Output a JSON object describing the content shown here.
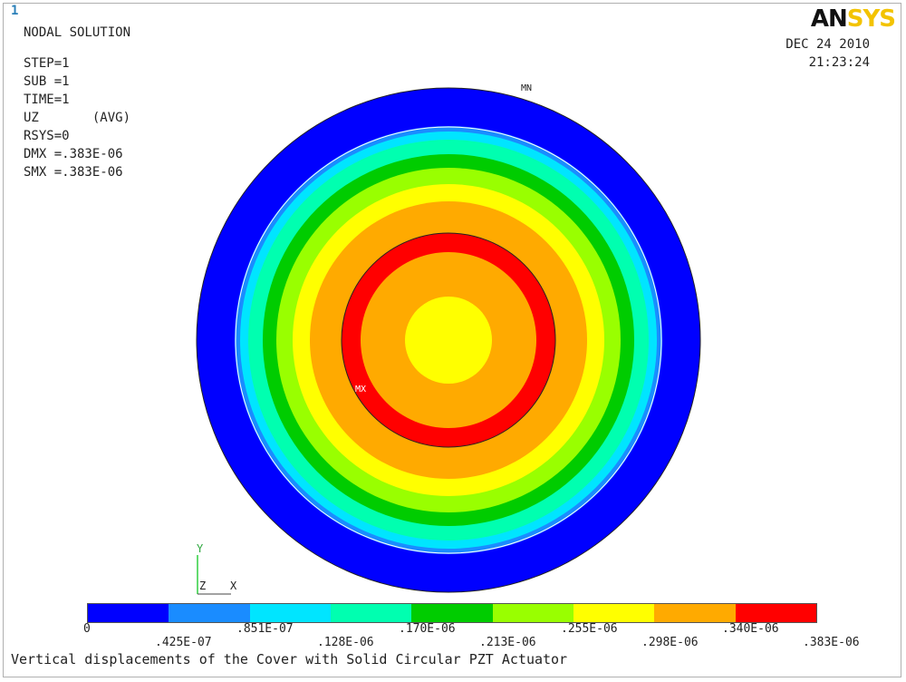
{
  "window_number": "1",
  "logo": {
    "part1": "AN",
    "part2": "SYS"
  },
  "info": {
    "title": "NODAL SOLUTION",
    "lines": [
      "STEP=1",
      "SUB =1",
      "TIME=1",
      "UZ       (AVG)",
      "RSYS=0",
      "DMX =.383E-06",
      "SMX =.383E-06"
    ]
  },
  "date": "DEC 24 2010",
  "time": "21:23:24",
  "markers": {
    "min": "MN",
    "max": "MX"
  },
  "axes": {
    "y": "Y",
    "z": "Z",
    "x": "X"
  },
  "contour_colors": [
    "#0000ff",
    "#1a8cff",
    "#00e5ff",
    "#00ffb0",
    "#00cc00",
    "#99ff00",
    "#ffff00",
    "#ffaa00",
    "#ff0000"
  ],
  "colorbar_labels_lower": [
    "0",
    ".851E-07",
    ".170E-06",
    ".255E-06",
    ".340E-06"
  ],
  "colorbar_labels_upper": [
    ".425E-07",
    ".128E-06",
    ".213E-06",
    ".298E-06",
    ".383E-06"
  ],
  "caption": "Vertical displacements of the Cover with Solid Circular PZT Actuator"
}
